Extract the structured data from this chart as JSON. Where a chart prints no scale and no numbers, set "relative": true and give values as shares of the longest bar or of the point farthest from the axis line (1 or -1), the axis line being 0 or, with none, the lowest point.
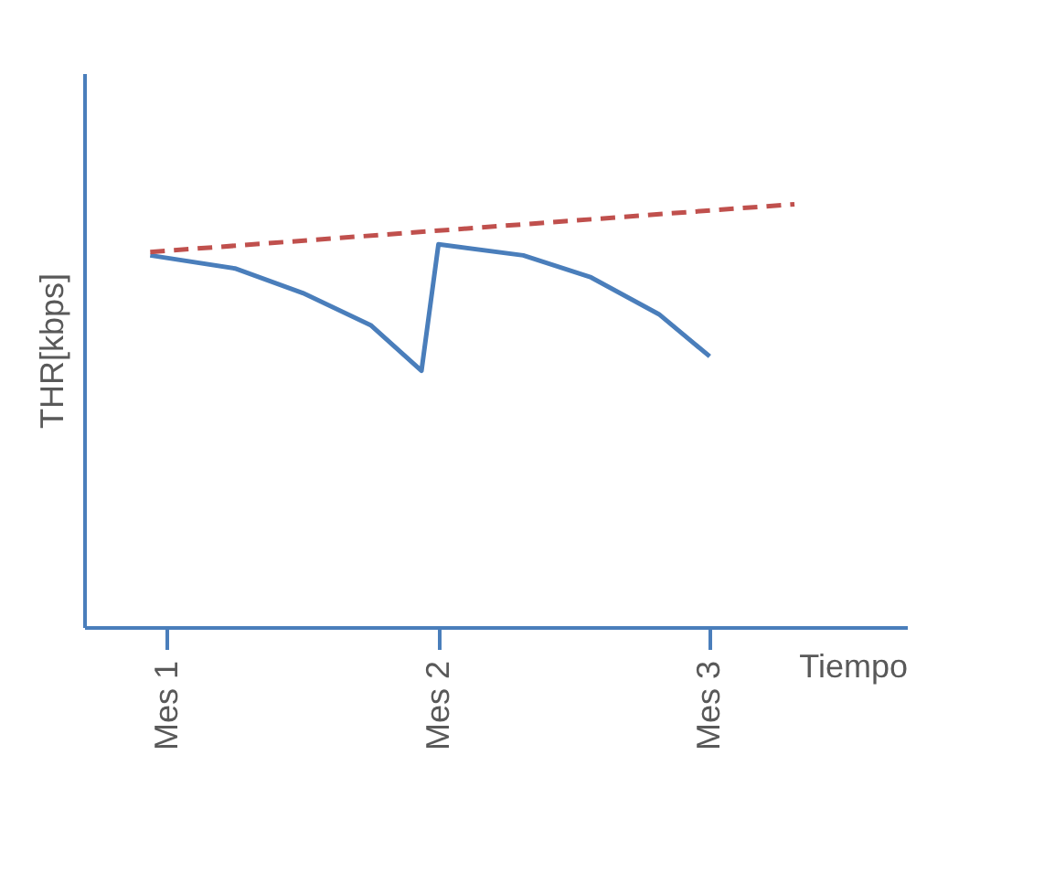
{
  "chart_data": {
    "type": "line",
    "relative": true,
    "xlabel": "Tiempo",
    "ylabel": "THR[kbps]",
    "tick_labels": "x",
    "grid": false,
    "marker": "none",
    "categories": [
      null,
      "Mes 1",
      null,
      null,
      null,
      null,
      null,
      null,
      null,
      null,
      null,
      null,
      null,
      null,
      null,
      null,
      null,
      "Mes 2",
      null,
      null,
      null,
      null,
      null,
      null,
      null,
      null,
      null,
      null,
      null,
      null,
      null,
      null,
      null,
      "Mes 3",
      null,
      null,
      null,
      null,
      null
    ],
    "series": [
      {
        "color": "#4a7ebb",
        "line_style": "solid",
        "values": [
          0.879,
          null,
          null,
          null,
          null,
          0.848,
          null,
          null,
          null,
          0.79,
          null,
          null,
          null,
          0.714,
          null,
          null,
          0.606,
          0.905,
          null,
          null,
          null,
          null,
          0.879,
          null,
          null,
          null,
          0.827,
          null,
          null,
          null,
          0.74,
          null,
          null,
          0.64,
          null,
          null,
          null,
          null,
          null
        ]
      },
      {
        "color": "#c0504d",
        "line_style": "dashed",
        "values": [
          0.887,
          null,
          null,
          null,
          null,
          null,
          null,
          null,
          null,
          null,
          null,
          null,
          null,
          null,
          null,
          null,
          null,
          null,
          null,
          null,
          null,
          null,
          null,
          null,
          null,
          null,
          null,
          null,
          null,
          null,
          null,
          null,
          null,
          null,
          null,
          null,
          null,
          null,
          1
        ]
      }
    ]
  }
}
